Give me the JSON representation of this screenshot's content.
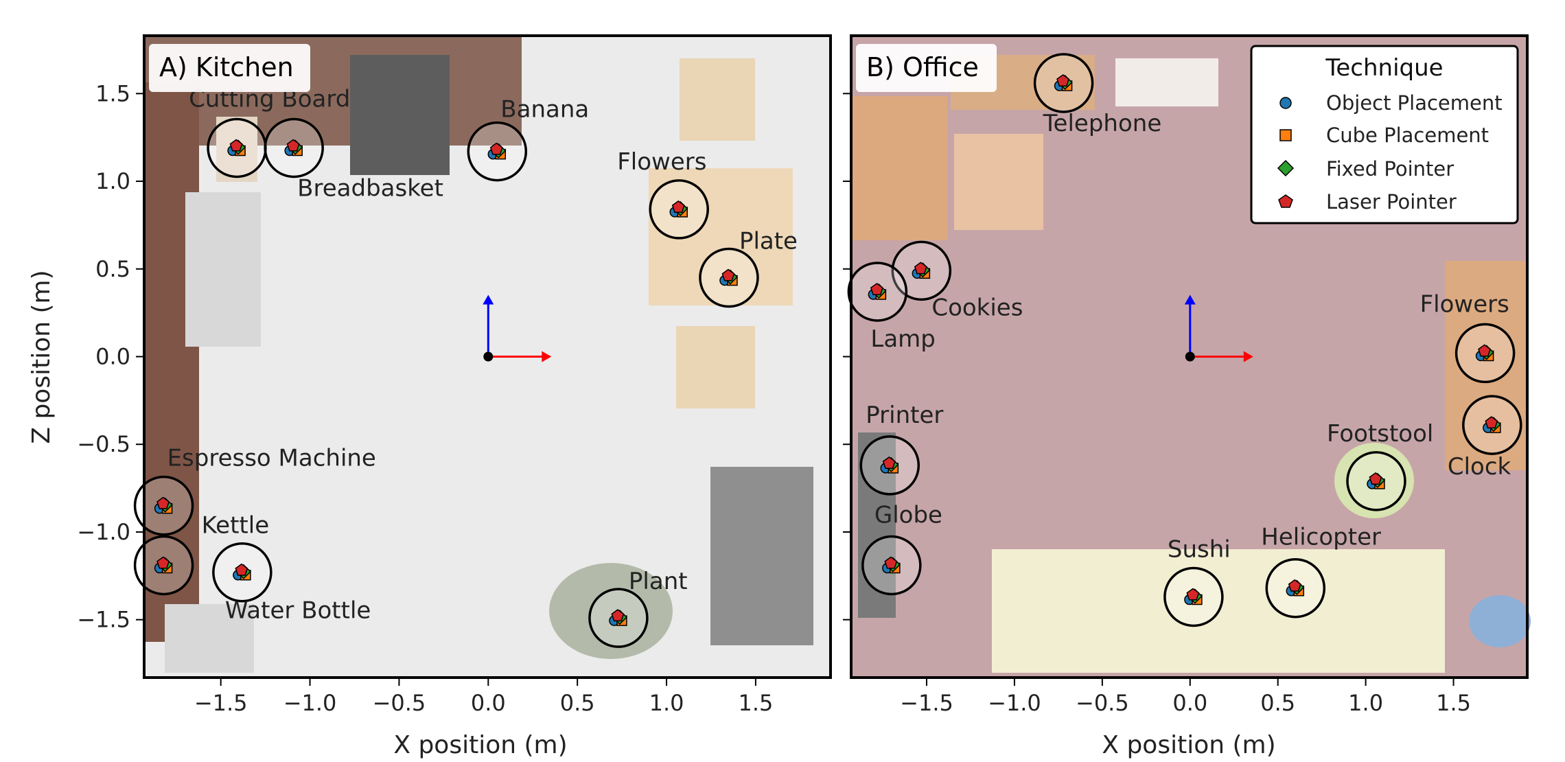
{
  "chart_data": [
    {
      "type": "scatter",
      "title": "A) Kitchen",
      "xlabel": "X position (m)",
      "ylabel": "Z position (m)",
      "xlim": [
        -1.93,
        1.92
      ],
      "ylim": [
        -1.83,
        1.83
      ],
      "xticks": [
        "−1.5",
        "−1.0",
        "−0.5",
        "0.0",
        "0.5",
        "1.0",
        "1.5"
      ],
      "yticks": [
        "−1.5",
        "−1.0",
        "−0.5",
        "0.0",
        "0.5",
        "1.0",
        "1.5"
      ],
      "background_color": "#e9e9e9",
      "objects": [
        {
          "label": "Cutting Board",
          "x": -1.41,
          "z": 1.19
        },
        {
          "label": "Breadbasket",
          "x": -1.09,
          "z": 1.19
        },
        {
          "label": "Banana",
          "x": 0.05,
          "z": 1.17
        },
        {
          "label": "Flowers",
          "x": 1.07,
          "z": 0.84
        },
        {
          "label": "Plate",
          "x": 1.35,
          "z": 0.45
        },
        {
          "label": "Espresso Machine",
          "x": -1.82,
          "z": -0.85
        },
        {
          "label": "Kettle",
          "x": -1.82,
          "z": -1.19
        },
        {
          "label": "Water Bottle",
          "x": -1.38,
          "z": -1.23
        },
        {
          "label": "Plant",
          "x": 0.73,
          "z": -1.49
        }
      ]
    },
    {
      "type": "scatter",
      "title": "B) Office",
      "xlabel": "X position (m)",
      "xlim": [
        -1.93,
        1.92
      ],
      "ylim": [
        -1.83,
        1.83
      ],
      "xticks": [
        "−1.5",
        "−1.0",
        "−0.5",
        "0.0",
        "0.5",
        "1.0",
        "1.5"
      ],
      "background_color": "#c4a3a6",
      "legend": {
        "title": "Technique",
        "placement": "top-right",
        "entries": [
          "Object Placement",
          "Cube Placement",
          "Fixed Pointer",
          "Laser Pointer"
        ]
      },
      "objects": [
        {
          "label": "Telephone",
          "x": -0.72,
          "z": 1.56
        },
        {
          "label": "Cookies",
          "x": -1.53,
          "z": 0.49
        },
        {
          "label": "Lamp",
          "x": -1.78,
          "z": 0.37
        },
        {
          "label": "Flowers",
          "x": 1.68,
          "z": 0.02
        },
        {
          "label": "Clock",
          "x": 1.72,
          "z": -0.39
        },
        {
          "label": "Printer",
          "x": -1.71,
          "z": -0.62
        },
        {
          "label": "Footstool",
          "x": 1.06,
          "z": -0.71
        },
        {
          "label": "Globe",
          "x": -1.7,
          "z": -1.19
        },
        {
          "label": "Sushi",
          "x": 0.02,
          "z": -1.37
        },
        {
          "label": "Helicopter",
          "x": 0.6,
          "z": -1.32
        }
      ]
    }
  ],
  "legend_series": [
    {
      "name": "Object Placement",
      "marker": "circle",
      "color": "#1f77b4"
    },
    {
      "name": "Cube Placement",
      "marker": "square",
      "color": "#ff7f0e"
    },
    {
      "name": "Fixed Pointer",
      "marker": "diamond",
      "color": "#2ca02c"
    },
    {
      "name": "Laser Pointer",
      "marker": "pentagon",
      "color": "#d62728"
    }
  ],
  "origin_axes": {
    "x_color": "#ff0000",
    "z_color": "#0000ff"
  }
}
